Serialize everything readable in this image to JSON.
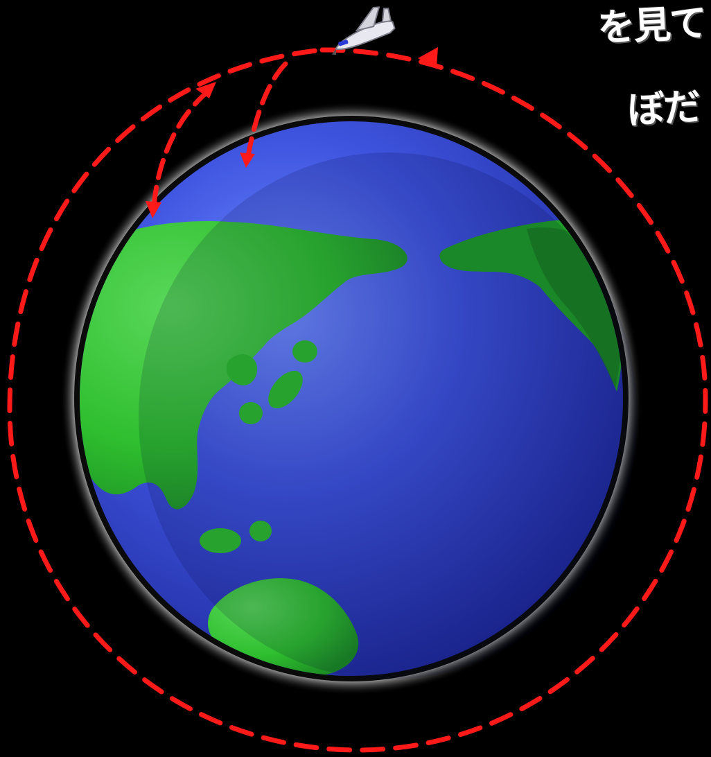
{
  "diagram": {
    "caption_line_1": "を見て",
    "caption_line_2": "ぼだ",
    "colors": {
      "background": "#000000",
      "orbit": "#ff1a1a",
      "ocean": "#3f55e0",
      "land": "#2fbf2f",
      "land_dark": "#187a1f",
      "caption": "#ffffff"
    },
    "elements": {
      "earth": "earth-globe",
      "spacecraft": "space-shuttle-icon",
      "orbit": "dashed-orbit-path",
      "arrows": [
        "descent-arrow-inner",
        "descent-arrow-outer",
        "orbit-direction-arrow"
      ]
    }
  }
}
